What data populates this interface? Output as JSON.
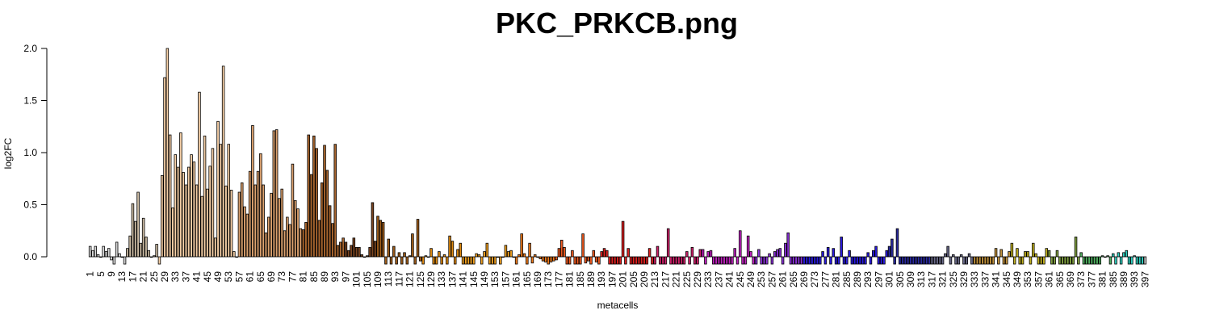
{
  "chart_data": {
    "type": "bar",
    "title": "PKC_PRKCB.png",
    "xlabel": "metacells",
    "ylabel": "log2FC",
    "ylim": [
      -0.07,
      2.05
    ],
    "yticks": [
      0.0,
      0.5,
      1.0,
      1.5,
      2.0
    ],
    "ytick_labels": [
      "0.0",
      "0.5",
      "1.0",
      "1.5",
      "2.0"
    ],
    "n_categories": 396,
    "x_label_every": 4,
    "grid": false,
    "legend": "none",
    "values": [
      0.1,
      0.06,
      0.1,
      0.02,
      0.0,
      0.1,
      0.05,
      0.08,
      -0.03,
      -0.07,
      0.14,
      0.03,
      0.0,
      -0.07,
      0.08,
      0.2,
      0.51,
      0.34,
      0.62,
      0.13,
      0.37,
      0.19,
      0.06,
      0.0,
      0.01,
      0.12,
      -0.07,
      0.78,
      1.72,
      2.0,
      1.17,
      0.47,
      0.98,
      0.86,
      1.19,
      0.81,
      0.69,
      0.86,
      0.98,
      0.91,
      0.69,
      1.58,
      0.58,
      1.16,
      0.65,
      0.87,
      1.04,
      0.18,
      1.3,
      1.08,
      1.83,
      0.68,
      1.08,
      0.64,
      0.05,
      0.0,
      0.62,
      0.71,
      0.48,
      0.41,
      0.82,
      1.26,
      0.69,
      0.82,
      0.99,
      0.69,
      0.23,
      0.38,
      0.61,
      1.21,
      1.22,
      0.56,
      0.65,
      0.25,
      0.38,
      0.31,
      0.89,
      0.54,
      0.46,
      0.27,
      0.26,
      0.33,
      1.17,
      0.79,
      1.16,
      1.04,
      0.35,
      0.71,
      1.07,
      0.83,
      0.49,
      0.32,
      1.08,
      0.11,
      0.14,
      0.18,
      0.14,
      0.06,
      0.11,
      0.18,
      0.09,
      0.09,
      0.02,
      0.0,
      0.01,
      0.09,
      0.52,
      0.15,
      0.39,
      0.35,
      0.33,
      -0.07,
      0.17,
      -0.07,
      0.1,
      -0.07,
      0.04,
      -0.07,
      0.04,
      -0.07,
      0.01,
      0.22,
      -0.07,
      0.36,
      -0.04,
      -0.07,
      0.01,
      0.0,
      0.08,
      -0.07,
      -0.07,
      0.05,
      -0.07,
      0.02,
      -0.07,
      0.2,
      0.15,
      -0.07,
      0.07,
      0.13,
      -0.07,
      -0.07,
      -0.07,
      -0.07,
      -0.07,
      0.03,
      0.02,
      -0.07,
      0.05,
      0.13,
      -0.07,
      -0.07,
      -0.07,
      0.0,
      -0.07,
      0.0,
      0.11,
      0.05,
      0.06,
      0.0,
      -0.07,
      0.02,
      0.22,
      0.03,
      -0.07,
      0.13,
      -0.06,
      0.02,
      0.0,
      -0.02,
      -0.04,
      -0.05,
      -0.07,
      -0.05,
      -0.04,
      -0.03,
      0.08,
      0.16,
      0.09,
      -0.07,
      -0.07,
      0.06,
      -0.07,
      -0.07,
      -0.07,
      0.22,
      -0.06,
      -0.04,
      -0.07,
      0.06,
      -0.05,
      -0.07,
      0.05,
      0.08,
      0.06,
      -0.07,
      -0.07,
      -0.07,
      -0.07,
      -0.07,
      0.34,
      -0.07,
      0.08,
      -0.07,
      -0.07,
      -0.07,
      -0.07,
      -0.07,
      -0.07,
      -0.07,
      0.08,
      -0.07,
      -0.07,
      0.1,
      -0.07,
      -0.07,
      -0.07,
      0.27,
      -0.07,
      -0.07,
      -0.07,
      -0.07,
      -0.07,
      -0.07,
      0.05,
      -0.07,
      0.09,
      -0.07,
      -0.07,
      0.07,
      0.07,
      -0.07,
      0.05,
      0.06,
      -0.07,
      -0.07,
      -0.07,
      -0.07,
      -0.07,
      -0.07,
      -0.07,
      -0.07,
      0.08,
      -0.07,
      0.25,
      -0.07,
      -0.07,
      0.2,
      0.05,
      -0.07,
      -0.07,
      0.07,
      -0.07,
      -0.07,
      -0.07,
      0.03,
      -0.07,
      0.05,
      0.07,
      0.08,
      -0.07,
      0.13,
      0.23,
      -0.07,
      -0.07,
      -0.07,
      -0.07,
      -0.07,
      -0.07,
      -0.07,
      -0.07,
      -0.07,
      -0.07,
      -0.07,
      -0.07,
      0.05,
      -0.07,
      0.09,
      -0.07,
      0.08,
      -0.07,
      -0.07,
      0.19,
      -0.07,
      -0.07,
      0.06,
      -0.07,
      -0.07,
      -0.07,
      -0.07,
      -0.07,
      -0.07,
      0.04,
      -0.07,
      0.06,
      0.1,
      -0.07,
      -0.07,
      -0.07,
      0.06,
      0.1,
      0.17,
      -0.07,
      0.27,
      -0.07,
      -0.07,
      -0.07,
      -0.07,
      -0.07,
      -0.07,
      -0.07,
      -0.07,
      -0.07,
      -0.07,
      -0.07,
      -0.07,
      -0.07,
      -0.07,
      -0.07,
      -0.07,
      -0.07,
      0.03,
      0.1,
      -0.07,
      0.02,
      -0.07,
      -0.07,
      0.02,
      -0.07,
      -0.07,
      0.03,
      -0.07,
      -0.07,
      -0.07,
      -0.07,
      -0.07,
      -0.07,
      -0.07,
      -0.07,
      -0.07,
      0.08,
      -0.07,
      0.07,
      -0.07,
      -0.07,
      0.05,
      0.13,
      -0.07,
      0.08,
      -0.07,
      -0.07,
      0.05,
      0.05,
      -0.07,
      0.13,
      0.03,
      -0.07,
      -0.07,
      -0.07,
      0.08,
      0.06,
      -0.07,
      -0.07,
      0.06,
      -0.07,
      -0.07,
      -0.07,
      -0.07,
      -0.07,
      -0.07,
      0.19,
      -0.07,
      0.04,
      -0.07,
      -0.07,
      -0.07,
      -0.07,
      -0.07,
      -0.07,
      -0.07,
      0.01,
      0.0,
      0.01,
      -0.07,
      0.03,
      -0.07,
      0.04,
      -0.07,
      0.04,
      0.06,
      -0.07,
      -0.07,
      0.01,
      -0.07,
      -0.07,
      -0.07,
      -0.07
    ],
    "colors": [
      {
        "from": 1,
        "to": 14,
        "color": "#d9d9d9"
      },
      {
        "from": 15,
        "to": 26,
        "color": "#c8b8a0"
      },
      {
        "from": 27,
        "to": 55,
        "color": "#f5cfa6"
      },
      {
        "from": 56,
        "to": 80,
        "color": "#dba16e"
      },
      {
        "from": 81,
        "to": 96,
        "color": "#a8652e"
      },
      {
        "from": 97,
        "to": 108,
        "color": "#7a4420"
      },
      {
        "from": 109,
        "to": 125,
        "color": "#a05d1a"
      },
      {
        "from": 126,
        "to": 140,
        "color": "#e08a10"
      },
      {
        "from": 141,
        "to": 160,
        "color": "#f0a020"
      },
      {
        "from": 161,
        "to": 175,
        "color": "#f07a1a"
      },
      {
        "from": 176,
        "to": 192,
        "color": "#f05a20"
      },
      {
        "from": 193,
        "to": 212,
        "color": "#e02020"
      },
      {
        "from": 213,
        "to": 230,
        "color": "#d0206a"
      },
      {
        "from": 231,
        "to": 250,
        "color": "#c020c0"
      },
      {
        "from": 251,
        "to": 268,
        "color": "#8a30d8"
      },
      {
        "from": 269,
        "to": 300,
        "color": "#2a1ae0"
      },
      {
        "from": 301,
        "to": 316,
        "color": "#2a2aa0"
      },
      {
        "from": 317,
        "to": 332,
        "color": "#6a6a8a"
      },
      {
        "from": 333,
        "to": 346,
        "color": "#c0903a"
      },
      {
        "from": 347,
        "to": 360,
        "color": "#c0b020"
      },
      {
        "from": 361,
        "to": 372,
        "color": "#80a040"
      },
      {
        "from": 373,
        "to": 384,
        "color": "#50b060"
      },
      {
        "from": 385,
        "to": 396,
        "color": "#30d0c0"
      }
    ]
  }
}
